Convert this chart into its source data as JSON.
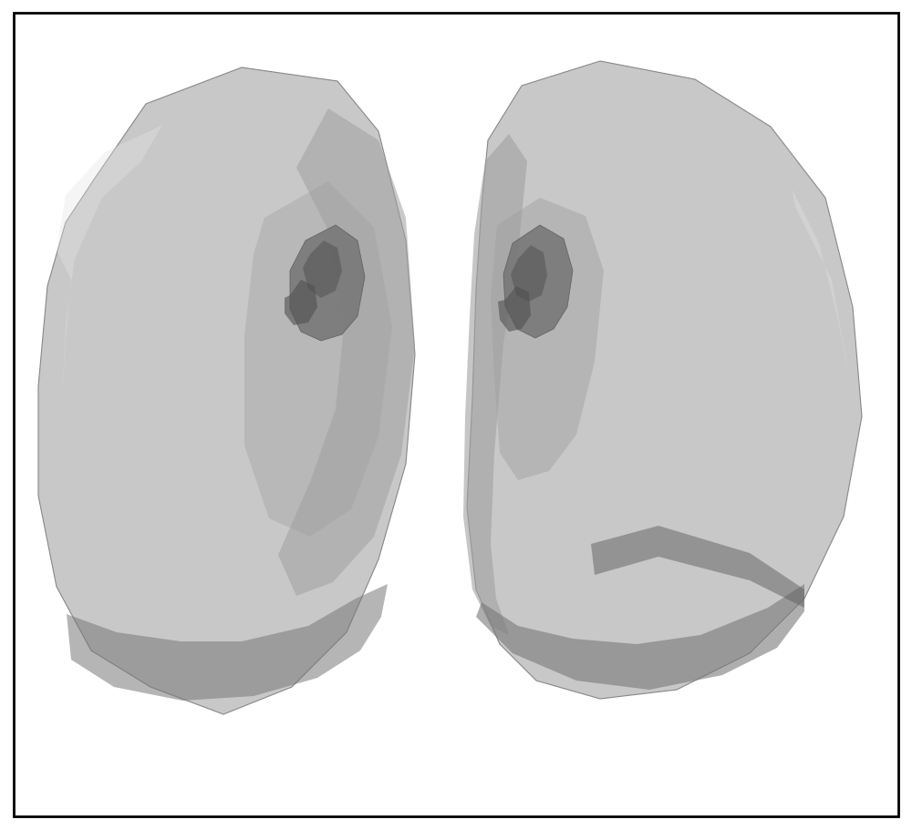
{
  "background_color": "#ffffff",
  "border_color": "#000000",
  "lung_light_gray": "#c8c8c8",
  "lung_mid_gray": "#a0a0a0",
  "lung_dark_gray": "#787878",
  "lung_darker": "#606060",
  "figsize": [
    10.0,
    9.12
  ],
  "dpi": 100
}
